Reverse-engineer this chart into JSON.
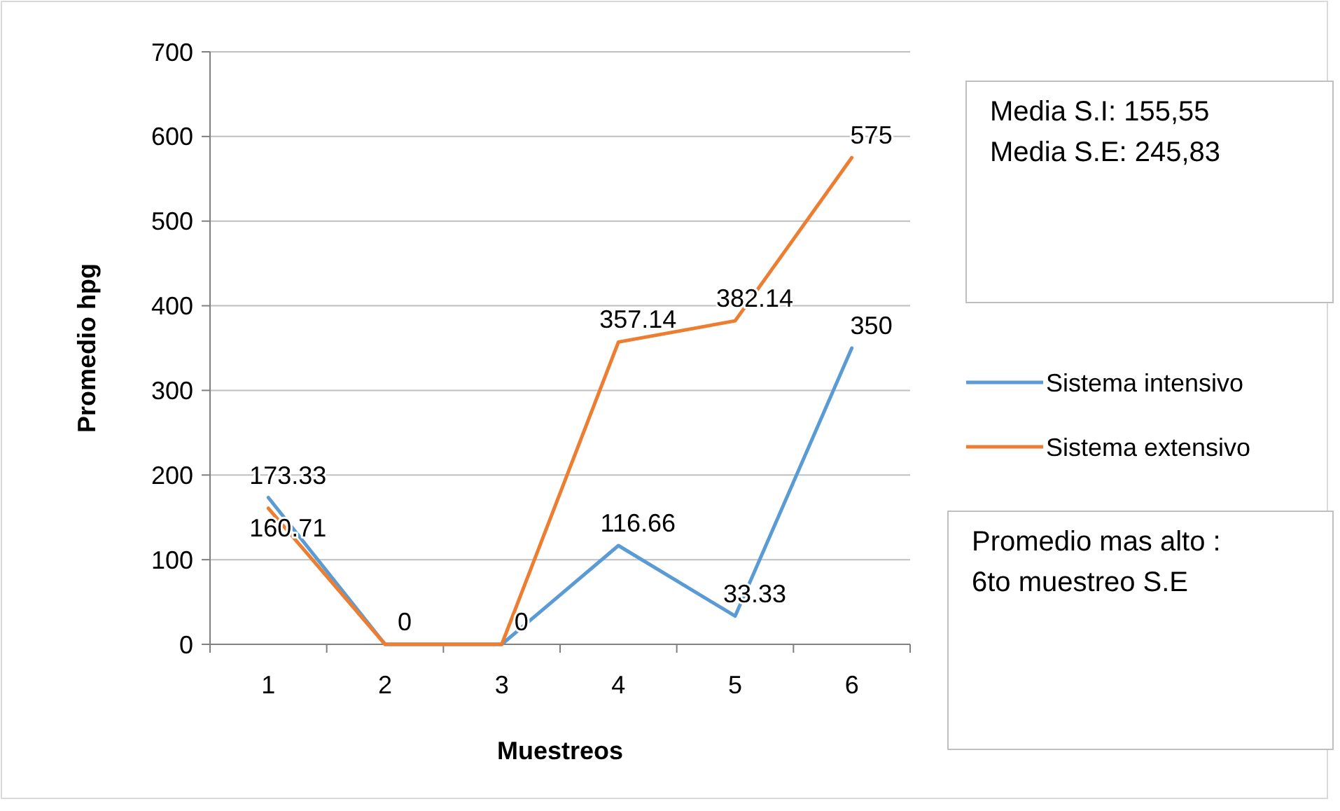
{
  "chart_data": {
    "type": "line",
    "xlabel": "Muestreos",
    "ylabel": "Promedio hpg",
    "categories": [
      "1",
      "2",
      "3",
      "4",
      "5",
      "6"
    ],
    "ylim": [
      0,
      700
    ],
    "yticks": [
      0,
      100,
      200,
      300,
      400,
      500,
      600,
      700
    ],
    "grid": "y",
    "legend": "right",
    "marker": "none",
    "line_style": "solid",
    "series": [
      {
        "name": "Sistema intensivo",
        "color": "#5b9bd5",
        "values": [
          173.33,
          0,
          0,
          116.66,
          33.33,
          350
        ],
        "value_labels": [
          "173.33",
          "0",
          "0",
          "116.66",
          "33.33",
          "350"
        ]
      },
      {
        "name": "Sistema extensivo",
        "color": "#ed7d31",
        "values": [
          160.71,
          0,
          0,
          357.14,
          382.14,
          575
        ],
        "value_labels": [
          "160.71",
          null,
          null,
          "357.14",
          "382.14",
          "575"
        ]
      }
    ],
    "annotations": [
      "Media S.I: 155,55\nMedia S.E: 245,83",
      "Promedio mas alto :\n6to muestreo S.E"
    ]
  }
}
